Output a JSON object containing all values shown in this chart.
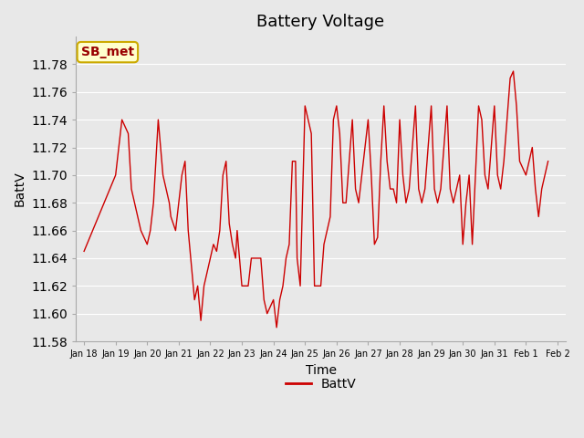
{
  "title": "Battery Voltage",
  "xlabel": "Time",
  "ylabel": "BattV",
  "legend_label": "BattV",
  "line_color": "#cc0000",
  "background_color": "#e8e8e8",
  "plot_bg_color": "#e8e8e8",
  "ylim": [
    11.58,
    11.8
  ],
  "yticks": [
    11.58,
    11.6,
    11.62,
    11.64,
    11.66,
    11.68,
    11.7,
    11.72,
    11.74,
    11.76,
    11.78
  ],
  "annotation_text": "SB_met",
  "annotation_bg": "#ffffcc",
  "annotation_border": "#ccaa00",
  "annotation_text_color": "#990000",
  "x_tick_labels": [
    "Jan 18",
    "Jan 19",
    "Jan 20",
    "Jan 21",
    "Jan 22",
    "Jan 23",
    "Jan 24",
    "Jan 25",
    "Jan 26",
    "Jan 27",
    "Jan 28",
    "Jan 29",
    "Jan 30",
    "Jan 31",
    "Feb 1",
    "Feb 2"
  ],
  "data_x_days": [
    18,
    19,
    19.2,
    19.4,
    19.5,
    19.6,
    19.8,
    20.0,
    20.1,
    20.2,
    20.3,
    20.35,
    20.5,
    20.7,
    20.75,
    20.9,
    21.0,
    21.1,
    21.2,
    21.3,
    21.5,
    21.6,
    21.7,
    21.8,
    22.0,
    22.1,
    22.2,
    22.3,
    22.4,
    22.5,
    22.6,
    22.7,
    22.8,
    22.85,
    23.0,
    23.1,
    23.2,
    23.3,
    23.5,
    23.6,
    23.7,
    23.8,
    24.0,
    24.1,
    24.2,
    24.3,
    24.4,
    24.5,
    24.6,
    24.7,
    24.75,
    24.85,
    25.0,
    25.1,
    25.2,
    25.3,
    25.4,
    25.5,
    25.6,
    25.7,
    25.8,
    25.9,
    26.0,
    26.1,
    26.2,
    26.3,
    26.5,
    26.6,
    26.7,
    27.0,
    27.1,
    27.2,
    27.3,
    27.4,
    27.5,
    27.6,
    27.7,
    27.8,
    27.9,
    28.0,
    28.1,
    28.2,
    28.3,
    28.5,
    28.6,
    28.7,
    28.8,
    29.0,
    29.1,
    29.2,
    29.3,
    29.5,
    29.6,
    29.7,
    29.8,
    29.9,
    30.0,
    30.1,
    30.2,
    30.3,
    30.5,
    30.6,
    30.7,
    30.8,
    31.0,
    31.1,
    31.2,
    31.3,
    31.5,
    31.6,
    31.7,
    31.8,
    32.0,
    32.1,
    32.2,
    32.3,
    32.4,
    32.5,
    32.6,
    32.7
  ],
  "data_y": [
    11.645,
    11.7,
    11.74,
    11.73,
    11.69,
    11.68,
    11.66,
    11.65,
    11.66,
    11.68,
    11.72,
    11.74,
    11.7,
    11.68,
    11.67,
    11.66,
    11.68,
    11.7,
    11.71,
    11.66,
    11.61,
    11.62,
    11.595,
    11.62,
    11.64,
    11.65,
    11.645,
    11.66,
    11.7,
    11.71,
    11.665,
    11.65,
    11.64,
    11.66,
    11.62,
    11.62,
    11.62,
    11.64,
    11.64,
    11.64,
    11.61,
    11.6,
    11.61,
    11.59,
    11.61,
    11.62,
    11.64,
    11.65,
    11.71,
    11.71,
    11.64,
    11.62,
    11.75,
    11.74,
    11.73,
    11.62,
    11.62,
    11.62,
    11.65,
    11.66,
    11.67,
    11.74,
    11.75,
    11.73,
    11.68,
    11.68,
    11.74,
    11.69,
    11.68,
    11.74,
    11.7,
    11.65,
    11.655,
    11.71,
    11.75,
    11.71,
    11.69,
    11.69,
    11.68,
    11.74,
    11.7,
    11.68,
    11.69,
    11.75,
    11.69,
    11.68,
    11.69,
    11.75,
    11.69,
    11.68,
    11.69,
    11.75,
    11.69,
    11.68,
    11.69,
    11.7,
    11.65,
    11.68,
    11.7,
    11.65,
    11.75,
    11.74,
    11.7,
    11.69,
    11.75,
    11.7,
    11.69,
    11.71,
    11.77,
    11.775,
    11.75,
    11.71,
    11.7,
    11.71,
    11.72,
    11.69,
    11.67,
    11.69,
    11.7,
    11.71
  ]
}
